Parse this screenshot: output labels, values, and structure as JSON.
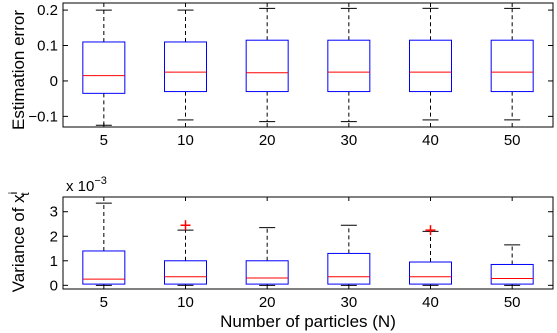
{
  "chart_data": [
    {
      "type": "boxplot",
      "title": "",
      "xlabel": "",
      "ylabel": "Estimation error",
      "categories": [
        "5",
        "10",
        "20",
        "30",
        "40",
        "50"
      ],
      "ylim": [
        -0.13,
        0.22
      ],
      "yticks": [
        -0.1,
        0,
        0.1,
        0.2
      ],
      "ytick_labels": [
        "−0.1",
        "0",
        "0.1",
        "0.2"
      ],
      "y_multiplier_label": "",
      "grid": false,
      "box_color": "#0000ff",
      "median_color": "#ff0000",
      "whisker_color": "#000000",
      "outlier_color": "#ff0000",
      "boxes": [
        {
          "whisker_low": -0.125,
          "q1": -0.035,
          "median": 0.015,
          "q3": 0.11,
          "whisker_high": 0.2,
          "outliers": []
        },
        {
          "whisker_low": -0.11,
          "q1": -0.03,
          "median": 0.025,
          "q3": 0.11,
          "whisker_high": 0.2,
          "outliers": []
        },
        {
          "whisker_low": -0.115,
          "q1": -0.03,
          "median": 0.023,
          "q3": 0.115,
          "whisker_high": 0.205,
          "outliers": []
        },
        {
          "whisker_low": -0.115,
          "q1": -0.03,
          "median": 0.025,
          "q3": 0.115,
          "whisker_high": 0.205,
          "outliers": []
        },
        {
          "whisker_low": -0.11,
          "q1": -0.03,
          "median": 0.025,
          "q3": 0.115,
          "whisker_high": 0.205,
          "outliers": []
        },
        {
          "whisker_low": -0.11,
          "q1": -0.03,
          "median": 0.025,
          "q3": 0.115,
          "whisker_high": 0.205,
          "outliers": []
        }
      ]
    },
    {
      "type": "boxplot",
      "title": "",
      "xlabel": "Number of particles (N)",
      "ylabel": "Variance of x",
      "ylabel_subscript": "t",
      "ylabel_superscript": "i",
      "categories": [
        "5",
        "10",
        "20",
        "30",
        "40",
        "50"
      ],
      "ylim": [
        -0.15,
        3.6
      ],
      "yticks": [
        0,
        1,
        2,
        3
      ],
      "ytick_labels": [
        "0",
        "1",
        "2",
        "3"
      ],
      "y_multiplier_label": "x 10",
      "y_multiplier_exponent": "−3",
      "grid": false,
      "box_color": "#0000ff",
      "median_color": "#ff0000",
      "whisker_color": "#000000",
      "outlier_color": "#ff0000",
      "boxes": [
        {
          "whisker_low": 0.0,
          "q1": 0.05,
          "median": 0.25,
          "q3": 1.4,
          "whisker_high": 3.35,
          "outliers": []
        },
        {
          "whisker_low": 0.0,
          "q1": 0.05,
          "median": 0.35,
          "q3": 1.0,
          "whisker_high": 2.25,
          "outliers": [
            2.45
          ]
        },
        {
          "whisker_low": 0.0,
          "q1": 0.05,
          "median": 0.3,
          "q3": 1.0,
          "whisker_high": 2.35,
          "outliers": []
        },
        {
          "whisker_low": 0.0,
          "q1": 0.05,
          "median": 0.35,
          "q3": 1.3,
          "whisker_high": 2.45,
          "outliers": []
        },
        {
          "whisker_low": 0.0,
          "q1": 0.05,
          "median": 0.35,
          "q3": 0.95,
          "whisker_high": 2.2,
          "outliers": [
            2.25
          ]
        },
        {
          "whisker_low": 0.0,
          "q1": 0.05,
          "median": 0.28,
          "q3": 0.85,
          "whisker_high": 1.65,
          "outliers": []
        }
      ]
    }
  ]
}
